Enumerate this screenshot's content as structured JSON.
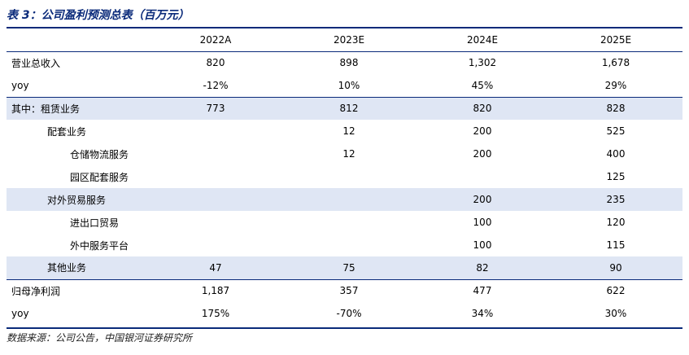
{
  "title": "表 3：公司盈利预测总表（百万元）",
  "columns": [
    "",
    "2022A",
    "2023E",
    "2024E",
    "2025E"
  ],
  "rows": [
    {
      "label": "营业总收入",
      "values": [
        "820",
        "898",
        "1,302",
        "1,678"
      ]
    },
    {
      "label": "yoy",
      "values": [
        "-12%",
        "10%",
        "45%",
        "29%"
      ]
    },
    {
      "label": "其中：租赁业务",
      "values": [
        "773",
        "812",
        "820",
        "828"
      ]
    },
    {
      "label": "配套业务",
      "values": [
        "",
        "12",
        "200",
        "525"
      ]
    },
    {
      "label": "仓储物流服务",
      "values": [
        "",
        "12",
        "200",
        "400"
      ]
    },
    {
      "label": "园区配套服务",
      "values": [
        "",
        "",
        "",
        "125"
      ]
    },
    {
      "label": "对外贸易服务",
      "values": [
        "",
        "",
        "200",
        "235"
      ]
    },
    {
      "label": "进出口贸易",
      "values": [
        "",
        "",
        "100",
        "120"
      ]
    },
    {
      "label": "外中服务平台",
      "values": [
        "",
        "",
        "100",
        "115"
      ]
    },
    {
      "label": "其他业务",
      "values": [
        "47",
        "75",
        "82",
        "90"
      ]
    },
    {
      "label": "归母净利润",
      "values": [
        "1,187",
        "357",
        "477",
        "622"
      ]
    },
    {
      "label": "yoy",
      "values": [
        "175%",
        "-70%",
        "34%",
        "30%"
      ]
    }
  ],
  "source": "数据来源：公司公告，中国银河证券研究所"
}
